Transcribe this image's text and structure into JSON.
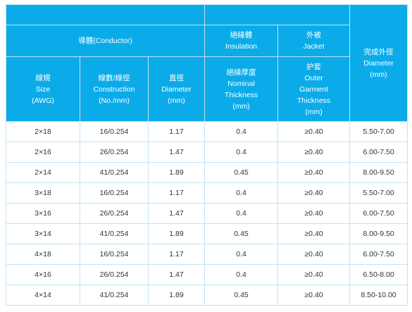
{
  "header": {
    "conductor_group": "導體(Conductor)",
    "insulation_group": {
      "line1": "絕緣體",
      "line2": "Insulation"
    },
    "jacket_group": {
      "line1": "外被",
      "line2": "Jacket"
    },
    "finished_od": {
      "line1": "完成外徑",
      "line2": "Diameter",
      "line3": "(mm)"
    },
    "size": {
      "line1": "線規",
      "line2": "Size",
      "line3": "(AWG)"
    },
    "construction": {
      "line1": "線數/線徑",
      "line2": "Construction",
      "line3": "(No./mm)"
    },
    "conductor_diameter": {
      "line1": "直徑",
      "line2": "Diameter",
      "line3": "(mm)"
    },
    "nominal_thickness": {
      "line1": "絕緣厚度",
      "line2": "Nominal",
      "line3": "Thickness",
      "line4": "(mm)"
    },
    "outer_garment": {
      "line1": "护套",
      "line2": "Outer",
      "line3": "Garment",
      "line4": "Thickness",
      "line5": "(mm)"
    }
  },
  "rows": [
    {
      "size": "2×18",
      "construction": "16/0.254",
      "diameter": "1.17",
      "insulation": "0.4",
      "jacket": "≥0.40",
      "od": "5.50-7.00"
    },
    {
      "size": "2×16",
      "construction": "26/0.254",
      "diameter": "1.47",
      "insulation": "0.4",
      "jacket": "≥0.40",
      "od": "6.00-7.50"
    },
    {
      "size": "2×14",
      "construction": "41/0.254",
      "diameter": "1.89",
      "insulation": "0.45",
      "jacket": "≥0.40",
      "od": "8.00-9.50"
    },
    {
      "size": "3×18",
      "construction": "16/0.254",
      "diameter": "1.17",
      "insulation": "0.4",
      "jacket": "≥0.40",
      "od": "5.50-7.00"
    },
    {
      "size": "3×16",
      "construction": "26/0.254",
      "diameter": "1.47",
      "insulation": "0.4",
      "jacket": "≥0.40",
      "od": "6.00-7.50"
    },
    {
      "size": "3×14",
      "construction": "41/0.254",
      "diameter": "1.89",
      "insulation": "0.45",
      "jacket": "≥0.40",
      "od": "8.00-9.50"
    },
    {
      "size": "4×18",
      "construction": "16/0.254",
      "diameter": "1.17",
      "insulation": "0.4",
      "jacket": "≥0.40",
      "od": "6.00-7.50"
    },
    {
      "size": "4×16",
      "construction": "26/0.254",
      "diameter": "1.47",
      "insulation": "0.4",
      "jacket": "≥0.40",
      "od": "6.50-8.00"
    },
    {
      "size": "4×14",
      "construction": "41/0.254",
      "diameter": "1.89",
      "insulation": "0.45",
      "jacket": "≥0.40",
      "od": "8.50-10.00"
    }
  ]
}
